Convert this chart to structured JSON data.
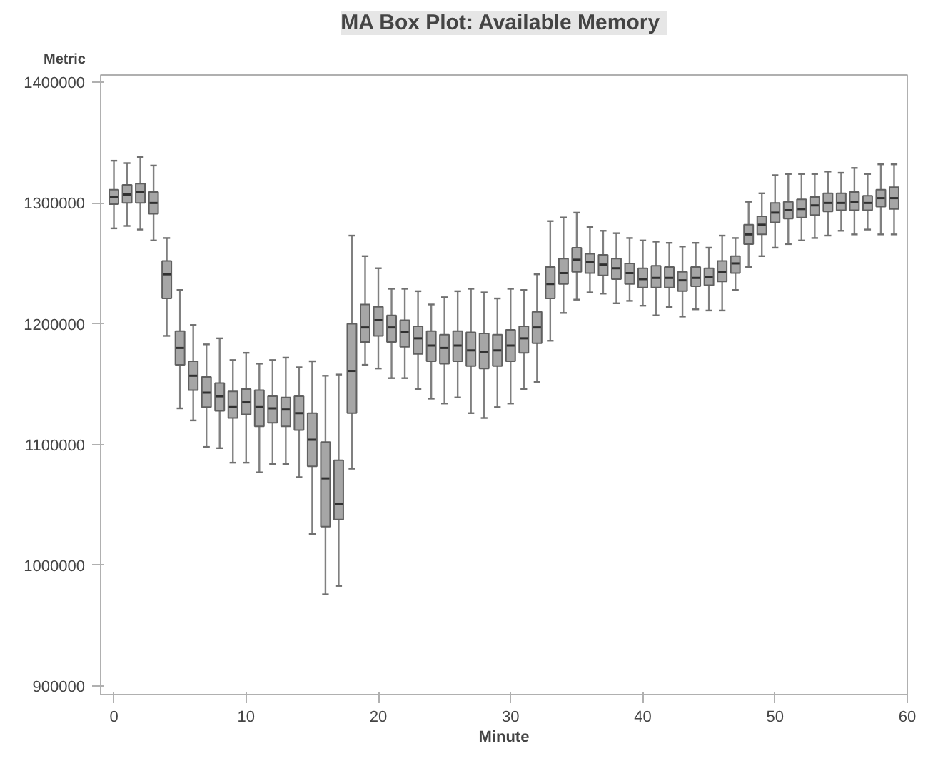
{
  "chart_data": {
    "type": "box",
    "title": "MA Box Plot:  Available Memory",
    "xlabel": "Minute",
    "ylabel": "Metric",
    "x": [
      0,
      1,
      2,
      3,
      4,
      5,
      6,
      7,
      8,
      9,
      10,
      11,
      12,
      13,
      14,
      15,
      16,
      17,
      18,
      19,
      20,
      21,
      22,
      23,
      24,
      25,
      26,
      27,
      28,
      29,
      30,
      31,
      32,
      33,
      34,
      35,
      36,
      37,
      38,
      39,
      40,
      41,
      42,
      43,
      44,
      45,
      46,
      47,
      48,
      49,
      50,
      51,
      52,
      53,
      54,
      55,
      56,
      57,
      58,
      59
    ],
    "color": "#a6a6a6",
    "boxes": [
      {
        "low": 1279000,
        "q1": 1299000,
        "median": 1305000,
        "q3": 1311000,
        "high": 1335000
      },
      {
        "low": 1281000,
        "q1": 1300000,
        "median": 1307000,
        "q3": 1315000,
        "high": 1333000
      },
      {
        "low": 1278000,
        "q1": 1300000,
        "median": 1309000,
        "q3": 1316000,
        "high": 1338000
      },
      {
        "low": 1269000,
        "q1": 1291000,
        "median": 1300000,
        "q3": 1309000,
        "high": 1331000
      },
      {
        "low": 1190000,
        "q1": 1221000,
        "median": 1241000,
        "q3": 1252000,
        "high": 1271000
      },
      {
        "low": 1130000,
        "q1": 1166000,
        "median": 1180000,
        "q3": 1194000,
        "high": 1228000
      },
      {
        "low": 1120000,
        "q1": 1145000,
        "median": 1157000,
        "q3": 1169000,
        "high": 1199000
      },
      {
        "low": 1098000,
        "q1": 1131000,
        "median": 1143000,
        "q3": 1156000,
        "high": 1183000
      },
      {
        "low": 1097000,
        "q1": 1128000,
        "median": 1140000,
        "q3": 1151000,
        "high": 1188000
      },
      {
        "low": 1085000,
        "q1": 1122000,
        "median": 1131000,
        "q3": 1144000,
        "high": 1170000
      },
      {
        "low": 1085000,
        "q1": 1125000,
        "median": 1135000,
        "q3": 1146000,
        "high": 1176000
      },
      {
        "low": 1077000,
        "q1": 1115000,
        "median": 1131000,
        "q3": 1145000,
        "high": 1167000
      },
      {
        "low": 1084000,
        "q1": 1118000,
        "median": 1130000,
        "q3": 1140000,
        "high": 1170000
      },
      {
        "low": 1084000,
        "q1": 1115000,
        "median": 1129000,
        "q3": 1139000,
        "high": 1172000
      },
      {
        "low": 1073000,
        "q1": 1112000,
        "median": 1126000,
        "q3": 1140000,
        "high": 1164000
      },
      {
        "low": 1026000,
        "q1": 1082000,
        "median": 1104000,
        "q3": 1126000,
        "high": 1169000
      },
      {
        "low": 976000,
        "q1": 1032000,
        "median": 1072000,
        "q3": 1102000,
        "high": 1157000
      },
      {
        "low": 983000,
        "q1": 1038000,
        "median": 1051000,
        "q3": 1087000,
        "high": 1158000
      },
      {
        "low": 1080000,
        "q1": 1126000,
        "median": 1161000,
        "q3": 1200000,
        "high": 1273000
      },
      {
        "low": 1166000,
        "q1": 1185000,
        "median": 1197000,
        "q3": 1216000,
        "high": 1256000
      },
      {
        "low": 1163000,
        "q1": 1190000,
        "median": 1203000,
        "q3": 1214000,
        "high": 1246000
      },
      {
        "low": 1155000,
        "q1": 1185000,
        "median": 1197000,
        "q3": 1207000,
        "high": 1229000
      },
      {
        "low": 1155000,
        "q1": 1181000,
        "median": 1193000,
        "q3": 1203000,
        "high": 1229000
      },
      {
        "low": 1146000,
        "q1": 1175000,
        "median": 1188000,
        "q3": 1198000,
        "high": 1227000
      },
      {
        "low": 1138000,
        "q1": 1169000,
        "median": 1182000,
        "q3": 1194000,
        "high": 1216000
      },
      {
        "low": 1134000,
        "q1": 1167000,
        "median": 1180000,
        "q3": 1191000,
        "high": 1222000
      },
      {
        "low": 1139000,
        "q1": 1169000,
        "median": 1182000,
        "q3": 1194000,
        "high": 1227000
      },
      {
        "low": 1126000,
        "q1": 1165000,
        "median": 1178000,
        "q3": 1193000,
        "high": 1229000
      },
      {
        "low": 1122000,
        "q1": 1163000,
        "median": 1177000,
        "q3": 1192000,
        "high": 1226000
      },
      {
        "low": 1131000,
        "q1": 1165000,
        "median": 1178000,
        "q3": 1191000,
        "high": 1221000
      },
      {
        "low": 1134000,
        "q1": 1169000,
        "median": 1182000,
        "q3": 1195000,
        "high": 1229000
      },
      {
        "low": 1146000,
        "q1": 1176000,
        "median": 1188000,
        "q3": 1198000,
        "high": 1228000
      },
      {
        "low": 1152000,
        "q1": 1184000,
        "median": 1197000,
        "q3": 1210000,
        "high": 1241000
      },
      {
        "low": 1186000,
        "q1": 1221000,
        "median": 1233000,
        "q3": 1247000,
        "high": 1285000
      },
      {
        "low": 1209000,
        "q1": 1233000,
        "median": 1242000,
        "q3": 1254000,
        "high": 1288000
      },
      {
        "low": 1220000,
        "q1": 1243000,
        "median": 1253000,
        "q3": 1263000,
        "high": 1292000
      },
      {
        "low": 1226000,
        "q1": 1242000,
        "median": 1251000,
        "q3": 1258000,
        "high": 1280000
      },
      {
        "low": 1225000,
        "q1": 1240000,
        "median": 1249000,
        "q3": 1257000,
        "high": 1277000
      },
      {
        "low": 1217000,
        "q1": 1237000,
        "median": 1246000,
        "q3": 1254000,
        "high": 1275000
      },
      {
        "low": 1219000,
        "q1": 1233000,
        "median": 1242000,
        "q3": 1250000,
        "high": 1271000
      },
      {
        "low": 1215000,
        "q1": 1230000,
        "median": 1237000,
        "q3": 1246000,
        "high": 1269000
      },
      {
        "low": 1207000,
        "q1": 1230000,
        "median": 1238000,
        "q3": 1248000,
        "high": 1268000
      },
      {
        "low": 1214000,
        "q1": 1230000,
        "median": 1238000,
        "q3": 1247000,
        "high": 1267000
      },
      {
        "low": 1206000,
        "q1": 1227000,
        "median": 1236000,
        "q3": 1243000,
        "high": 1264000
      },
      {
        "low": 1212000,
        "q1": 1231000,
        "median": 1238000,
        "q3": 1247000,
        "high": 1267000
      },
      {
        "low": 1211000,
        "q1": 1232000,
        "median": 1239000,
        "q3": 1246000,
        "high": 1263000
      },
      {
        "low": 1211000,
        "q1": 1235000,
        "median": 1243000,
        "q3": 1252000,
        "high": 1273000
      },
      {
        "low": 1228000,
        "q1": 1242000,
        "median": 1250000,
        "q3": 1256000,
        "high": 1271000
      },
      {
        "low": 1247000,
        "q1": 1266000,
        "median": 1274000,
        "q3": 1282000,
        "high": 1301000
      },
      {
        "low": 1256000,
        "q1": 1274000,
        "median": 1282000,
        "q3": 1289000,
        "high": 1308000
      },
      {
        "low": 1263000,
        "q1": 1284000,
        "median": 1292000,
        "q3": 1300000,
        "high": 1323000
      },
      {
        "low": 1266000,
        "q1": 1287000,
        "median": 1294000,
        "q3": 1301000,
        "high": 1324000
      },
      {
        "low": 1269000,
        "q1": 1288000,
        "median": 1295000,
        "q3": 1303000,
        "high": 1324000
      },
      {
        "low": 1271000,
        "q1": 1290000,
        "median": 1298000,
        "q3": 1305000,
        "high": 1324000
      },
      {
        "low": 1273000,
        "q1": 1293000,
        "median": 1300000,
        "q3": 1308000,
        "high": 1326000
      },
      {
        "low": 1277000,
        "q1": 1294000,
        "median": 1300000,
        "q3": 1308000,
        "high": 1325000
      },
      {
        "low": 1274000,
        "q1": 1294000,
        "median": 1301000,
        "q3": 1309000,
        "high": 1329000
      },
      {
        "low": 1278000,
        "q1": 1294000,
        "median": 1300000,
        "q3": 1306000,
        "high": 1324000
      },
      {
        "low": 1274000,
        "q1": 1297000,
        "median": 1304000,
        "q3": 1311000,
        "high": 1332000
      },
      {
        "low": 1274000,
        "q1": 1295000,
        "median": 1304000,
        "q3": 1313000,
        "high": 1332000
      }
    ],
    "xlim": [
      -1,
      60
    ],
    "xticks": [
      0,
      10,
      20,
      30,
      40,
      50,
      60
    ],
    "ylim": [
      893000,
      1406000
    ],
    "yticks": [
      900000,
      1000000,
      1100000,
      1200000,
      1300000,
      1400000
    ],
    "grid": false
  }
}
